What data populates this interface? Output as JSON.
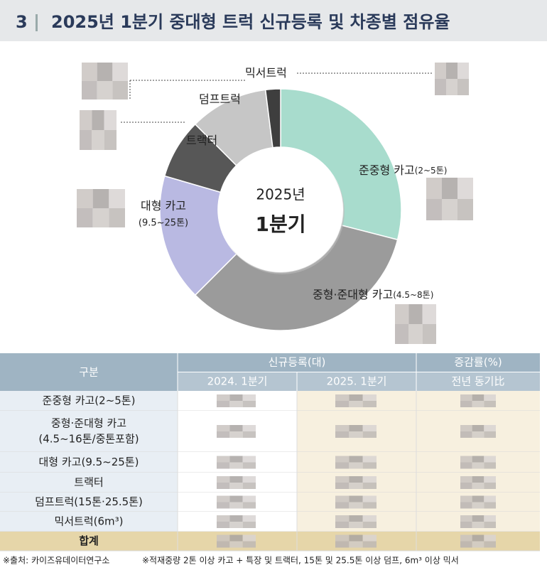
{
  "header": {
    "number": "3",
    "title": "2025년 1분기 중대형 트럭 신규등록 및 차종별 점유율"
  },
  "chart_data": {
    "type": "donut",
    "center_text": [
      "2025년",
      "1분기"
    ],
    "categories": [
      "준중형 카고",
      "중형·준대형 카고",
      "대형 카고",
      "트랙터",
      "덤프트럭",
      "믹서트럭"
    ],
    "category_notes": [
      "(2~5톤)",
      "(4.5~8톤)",
      "(9.5~25톤)",
      null,
      null,
      null
    ],
    "values": [
      29,
      33.5,
      17,
      8,
      10.5,
      2
    ],
    "colors": [
      "#a8dccd",
      "#9b9b9b",
      "#b9b9e2",
      "#575757",
      "#c6c6c6",
      "#3e3e3e"
    ]
  },
  "table": {
    "header": {
      "category": "구분",
      "group1": "신규등록(대)",
      "group2": "증감률(%)",
      "col1": "2024. 1분기",
      "col2": "2025. 1분기",
      "col3": "전년 동기比"
    },
    "rows": [
      {
        "label": [
          "준중형 카고(2~5톤)"
        ]
      },
      {
        "label": [
          "중형·준대형 카고",
          "(4.5~16톤/중톤포함)"
        ]
      },
      {
        "label": [
          "대형 카고(9.5~25톤)"
        ]
      },
      {
        "label": [
          "트랙터"
        ]
      },
      {
        "label": [
          "덤프트럭(15톤·25.5톤)"
        ]
      },
      {
        "label": [
          "믹서트럭(6m³)"
        ]
      },
      {
        "label": [
          "합계"
        ]
      }
    ]
  },
  "footnotes": [
    "※출처: 카이즈유데이터연구소",
    "※적재중량 2톤 이상 카고 + 특장 및 트랙터, 15톤 및 25.5톤 이상 덤프, 6m³ 이상 믹서"
  ]
}
